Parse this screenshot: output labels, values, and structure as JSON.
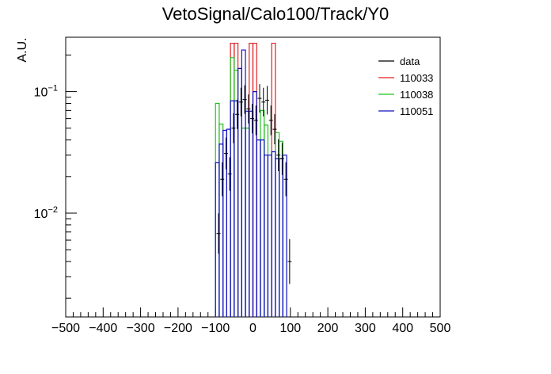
{
  "chart_data": {
    "type": "line",
    "title": "VetoSignal/Calo100/Track/Y0",
    "ylabel": "A.U.",
    "xlabel": "",
    "xlim": [
      -500,
      500
    ],
    "ylim": [
      0.0014,
      0.28
    ],
    "yscale": "log",
    "x_ticks": [
      "−500",
      "−400",
      "−300",
      "−200",
      "−100",
      "0",
      "100",
      "200",
      "300",
      "400",
      "500"
    ],
    "y_ticks": [
      {
        "base": "10",
        "exp": "−1",
        "value": 0.1
      },
      {
        "base": "10",
        "exp": "−2",
        "value": 0.01
      }
    ],
    "legend_position": "top-right",
    "series": [
      {
        "name": "data",
        "color": "#000000",
        "style": "points",
        "points": [
          {
            "x": -92,
            "y": 0.0068
          },
          {
            "x": -82,
            "y": 0.019
          },
          {
            "x": -72,
            "y": 0.031
          },
          {
            "x": -62,
            "y": 0.021
          },
          {
            "x": -52,
            "y": 0.05
          },
          {
            "x": -42,
            "y": 0.065
          },
          {
            "x": -32,
            "y": 0.082
          },
          {
            "x": -22,
            "y": 0.086
          },
          {
            "x": -12,
            "y": 0.072
          },
          {
            "x": -2,
            "y": 0.06
          },
          {
            "x": 8,
            "y": 0.058
          },
          {
            "x": 18,
            "y": 0.088
          },
          {
            "x": 28,
            "y": 0.082
          },
          {
            "x": 38,
            "y": 0.085
          },
          {
            "x": 48,
            "y": 0.058
          },
          {
            "x": 58,
            "y": 0.049
          },
          {
            "x": 68,
            "y": 0.03
          },
          {
            "x": 78,
            "y": 0.028
          },
          {
            "x": 88,
            "y": 0.019
          },
          {
            "x": 98,
            "y": 0.004
          }
        ]
      },
      {
        "name": "110033",
        "color": "#e02020",
        "style": "step",
        "bins": [
          {
            "x0": -60,
            "x1": -50,
            "y": 0.25
          },
          {
            "x0": -50,
            "x1": -40,
            "y": 0.25
          },
          {
            "x0": -10,
            "x1": 0,
            "y": 0.25
          },
          {
            "x0": 0,
            "x1": 10,
            "y": 0.25
          },
          {
            "x0": 50,
            "x1": 60,
            "y": 0.25
          }
        ]
      },
      {
        "name": "110038",
        "color": "#20c020",
        "style": "step",
        "bins": [
          {
            "x0": -100,
            "x1": -90,
            "y": 0.08
          },
          {
            "x0": -90,
            "x1": -80,
            "y": 0.054
          },
          {
            "x0": -60,
            "x1": -50,
            "y": 0.19
          },
          {
            "x0": -50,
            "x1": -40,
            "y": 0.15
          },
          {
            "x0": -30,
            "x1": -20,
            "y": 0.05
          },
          {
            "x0": -20,
            "x1": -10,
            "y": 0.05
          },
          {
            "x0": 20,
            "x1": 30,
            "y": 0.07
          },
          {
            "x0": 30,
            "x1": 40,
            "y": 0.053
          },
          {
            "x0": 60,
            "x1": 70,
            "y": 0.046
          },
          {
            "x0": 70,
            "x1": 80,
            "y": 0.039
          }
        ]
      },
      {
        "name": "110051",
        "color": "#1010c0",
        "style": "step",
        "bins": [
          {
            "x0": -100,
            "x1": -90,
            "y": 0.026
          },
          {
            "x0": -90,
            "x1": -80,
            "y": 0.037
          },
          {
            "x0": -80,
            "x1": -70,
            "y": 0.048
          },
          {
            "x0": -70,
            "x1": -60,
            "y": 0.049
          },
          {
            "x0": -60,
            "x1": -50,
            "y": 0.084
          },
          {
            "x0": -50,
            "x1": -40,
            "y": 0.084
          },
          {
            "x0": -40,
            "x1": -30,
            "y": 0.155
          },
          {
            "x0": -30,
            "x1": -20,
            "y": 0.22
          },
          {
            "x0": -20,
            "x1": -10,
            "y": 0.069
          },
          {
            "x0": -10,
            "x1": 0,
            "y": 0.069
          },
          {
            "x0": 0,
            "x1": 10,
            "y": 0.1
          },
          {
            "x0": 10,
            "x1": 20,
            "y": 0.04
          },
          {
            "x0": 20,
            "x1": 30,
            "y": 0.04
          },
          {
            "x0": 30,
            "x1": 40,
            "y": 0.03
          },
          {
            "x0": 40,
            "x1": 50,
            "y": 0.03
          },
          {
            "x0": 50,
            "x1": 60,
            "y": 0.032
          },
          {
            "x0": 60,
            "x1": 70,
            "y": 0.028
          },
          {
            "x0": 70,
            "x1": 80,
            "y": 0.028
          },
          {
            "x0": 80,
            "x1": 90,
            "y": 0.03
          }
        ]
      }
    ]
  }
}
